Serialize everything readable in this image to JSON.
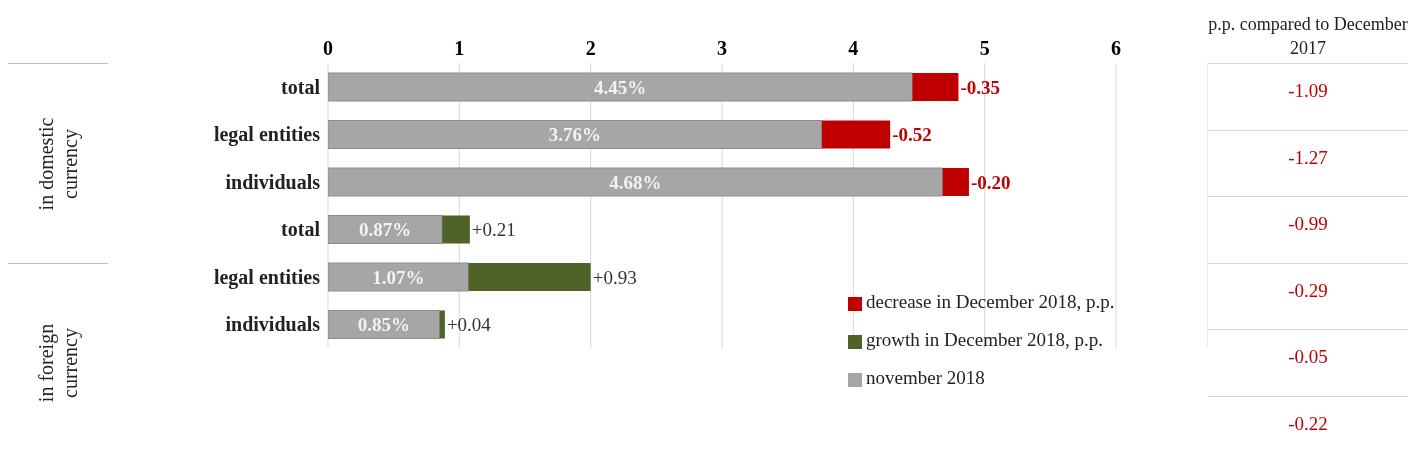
{
  "chart_data": {
    "type": "bar",
    "orientation": "horizontal",
    "stacked": true,
    "categories": [
      "total",
      "legal entities",
      "individuals",
      "total",
      "legal entities",
      "individuals"
    ],
    "series": [
      {
        "name": "november 2018",
        "color": "#a6a6a6",
        "values": [
          4.45,
          3.76,
          4.68,
          0.87,
          1.07,
          0.85
        ],
        "value_labels": [
          "4.45%",
          "3.76%",
          "4.68%",
          "0.87%",
          "1.07%",
          "0.85%"
        ]
      },
      {
        "name": "growth in December 2018, p.p.",
        "color": "#4f6228",
        "values": [
          null,
          null,
          null,
          0.21,
          0.93,
          0.04
        ],
        "value_labels": [
          null,
          null,
          null,
          "+0.21",
          "+0.93",
          "+0.04"
        ]
      },
      {
        "name": "decrease in December 2018, p.p.",
        "color": "#c00000",
        "values": [
          -0.35,
          -0.52,
          -0.2,
          null,
          null,
          null
        ],
        "base": [
          4.8,
          4.28,
          4.88,
          null,
          null,
          null
        ],
        "value_labels": [
          "-0.35",
          "-0.52",
          "-0.20",
          null,
          null,
          null
        ]
      }
    ],
    "xlim": [
      0,
      6.7
    ],
    "xticks": [
      0,
      1,
      2,
      3,
      4,
      5,
      6
    ],
    "grid": "x",
    "legend": "bottom right",
    "annotations": [
      "p.p. compared to December 2017",
      "-1.09",
      "-1.27",
      "-0.99",
      "-0.29",
      "-0.05",
      "-0.22",
      "in domestic currency",
      "in foreign currency"
    ]
  }
}
